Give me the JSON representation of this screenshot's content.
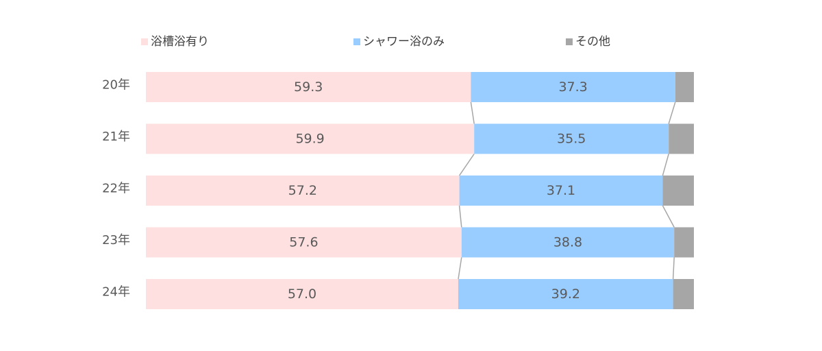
{
  "chart_data": {
    "type": "bar",
    "orientation": "horizontal",
    "stacked": "percent",
    "categories": [
      "20年",
      "21年",
      "22年",
      "23年",
      "24年"
    ],
    "series": [
      {
        "name": "浴槽浴有り",
        "values": [
          59.3,
          59.9,
          57.2,
          57.6,
          57.0
        ],
        "value_labels": [
          "59.3",
          "59.9",
          "57.2",
          "57.6",
          "57.0"
        ],
        "color": "#ffe0e0"
      },
      {
        "name": "シャワー浴のみ",
        "values": [
          37.3,
          35.5,
          37.1,
          38.8,
          39.2
        ],
        "value_labels": [
          "37.3",
          "35.5",
          "37.1",
          "38.8",
          "39.2"
        ],
        "color": "#99ccff"
      },
      {
        "name": "その他",
        "values": [
          3.4,
          4.6,
          5.7,
          3.6,
          3.8
        ],
        "value_labels": [
          "",
          "",
          "",
          "",
          ""
        ],
        "color": "#a6a6a6"
      }
    ],
    "series_lines": true,
    "series_line_color": "#a6a6a6",
    "xlim": [
      0,
      100
    ],
    "legend_position": "top",
    "grid": false,
    "text_color": "#595959"
  }
}
